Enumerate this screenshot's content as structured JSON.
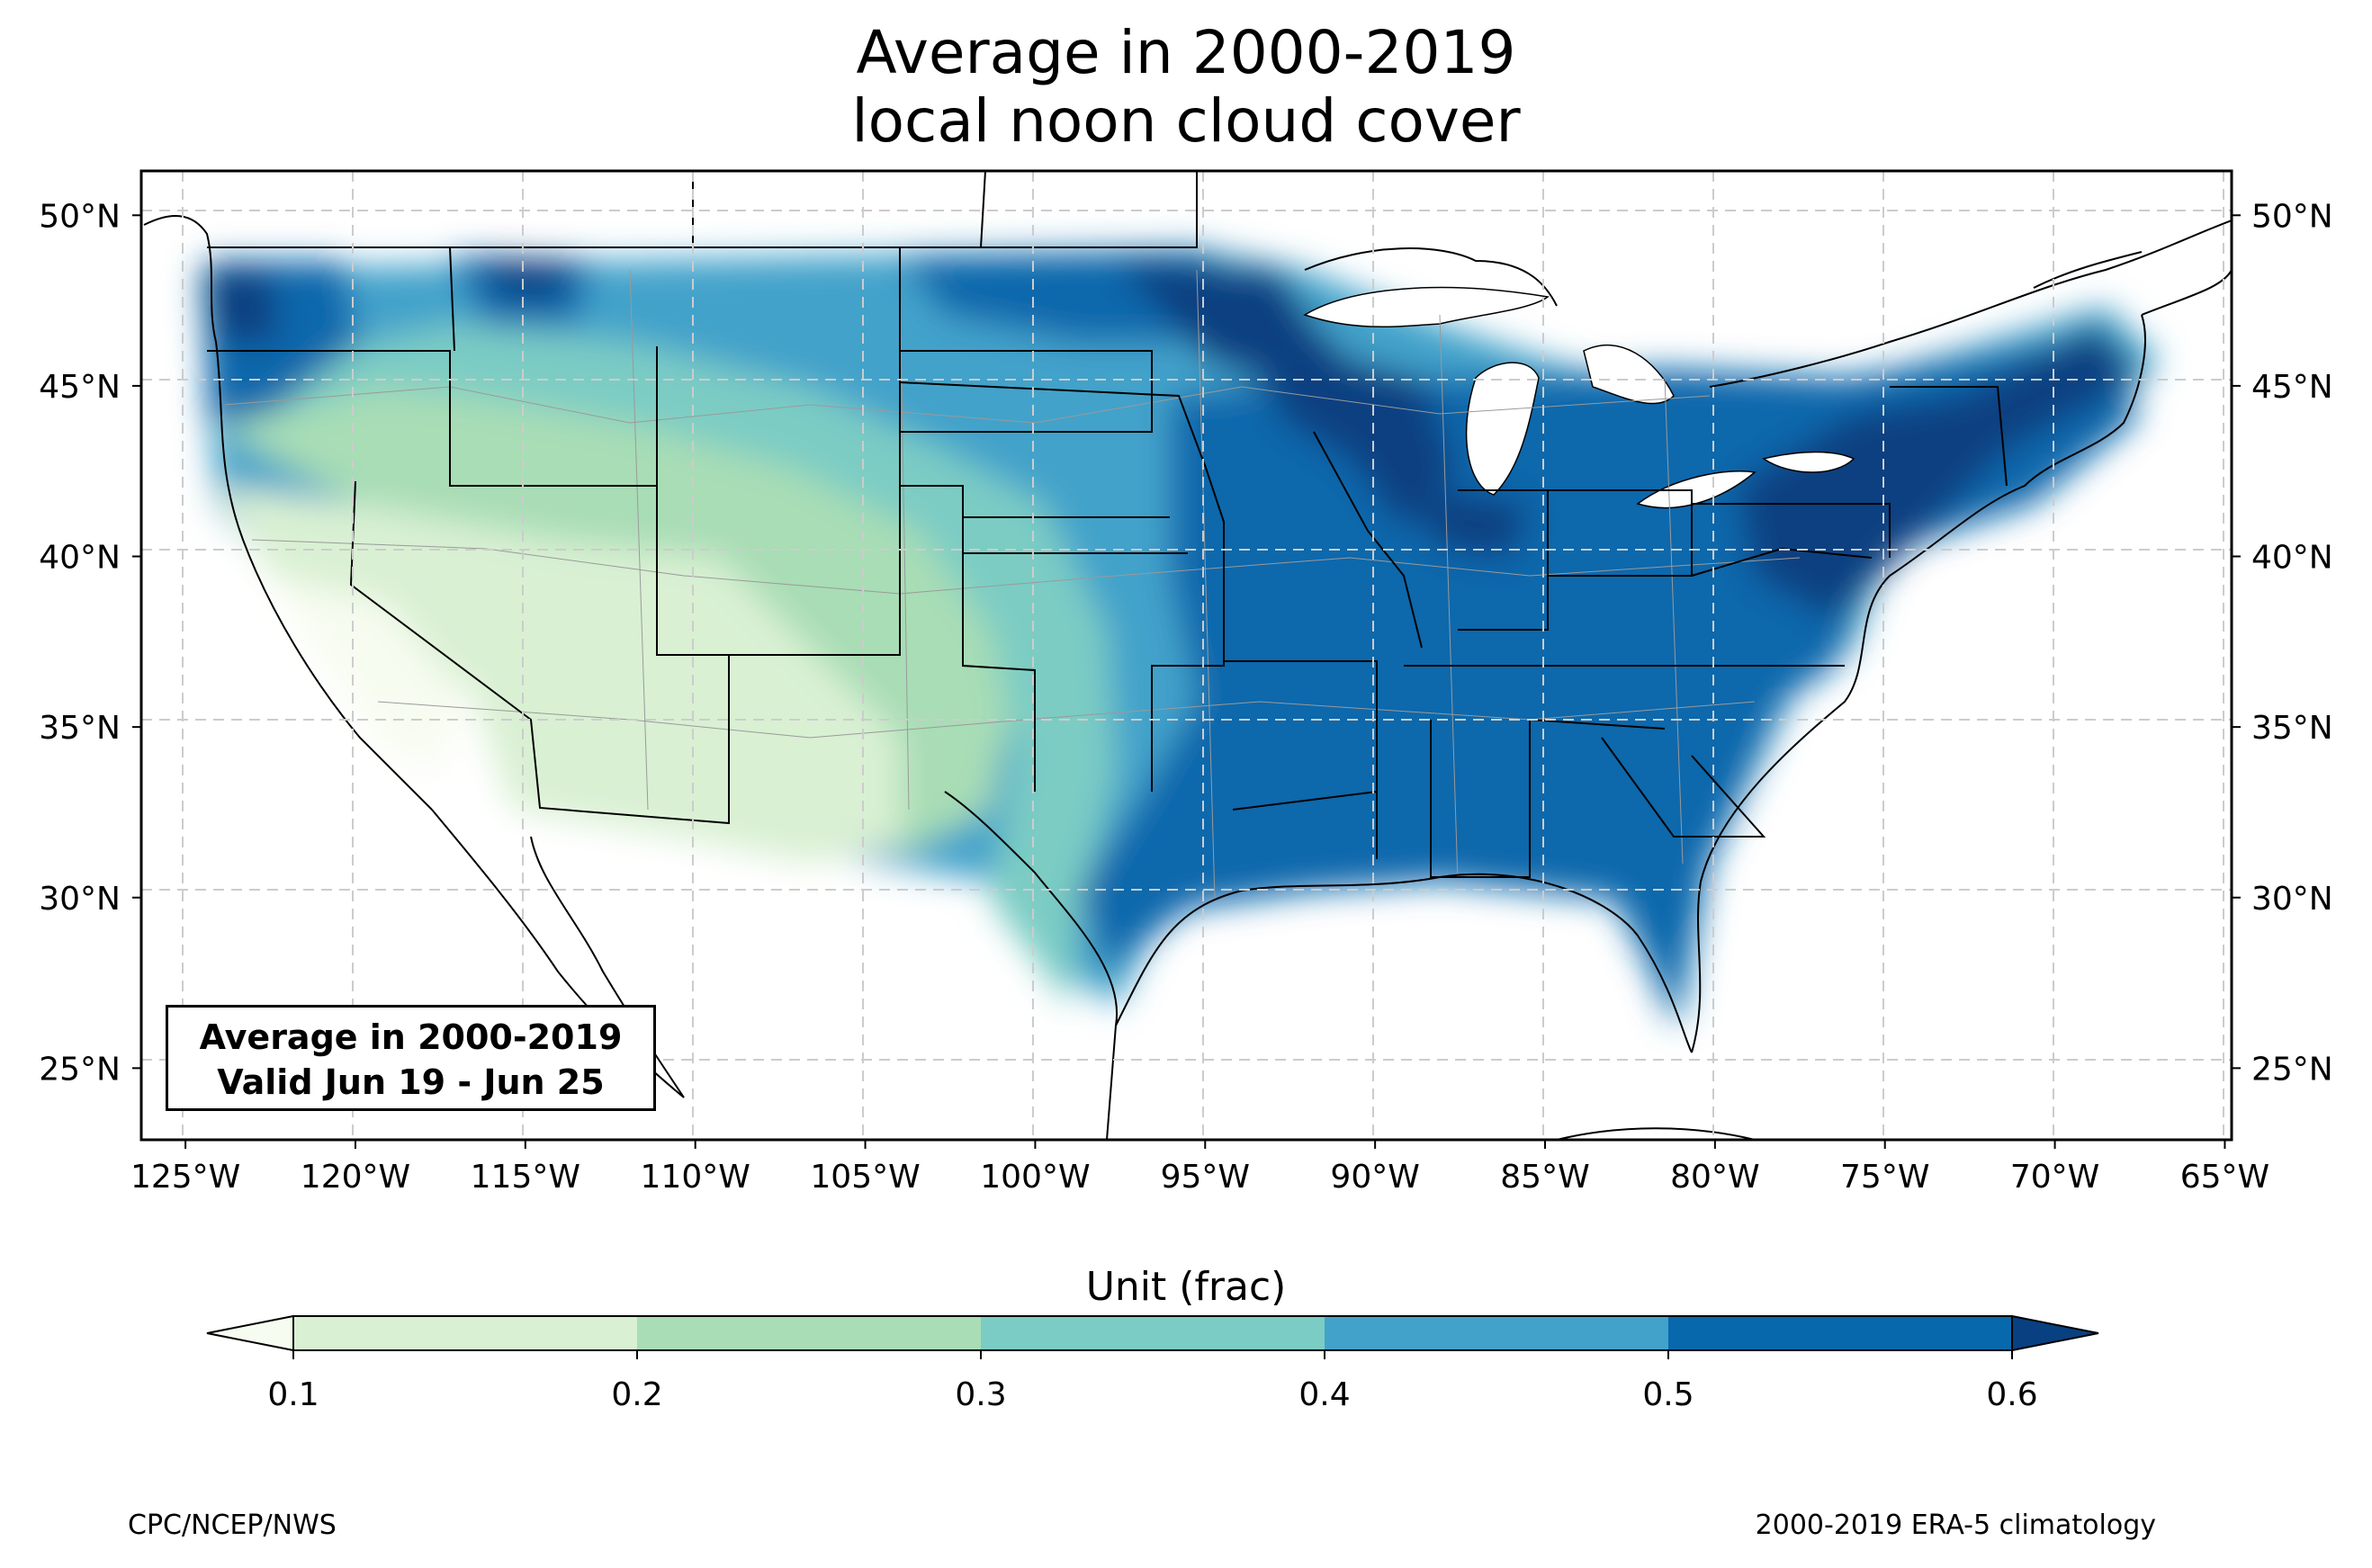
{
  "title": {
    "line1": "Average in 2000-2019",
    "line2": "local noon cloud cover"
  },
  "map": {
    "lon_range": [
      -126.3,
      -64.8
    ],
    "lat_range": [
      22.9,
      51.3
    ],
    "lon_ticks": [
      "125°W",
      "120°W",
      "115°W",
      "110°W",
      "105°W",
      "100°W",
      "95°W",
      "90°W",
      "85°W",
      "80°W",
      "75°W",
      "70°W",
      "65°W"
    ],
    "lat_ticks_left": [
      "50°N",
      "45°N",
      "40°N",
      "35°N",
      "30°N",
      "25°N"
    ],
    "lat_ticks_right": [
      "50°N",
      "45°N",
      "40°N",
      "35°N",
      "30°N",
      "25°N"
    ],
    "gridlines": true,
    "field": "cloud cover (fraction)",
    "pattern": "lowest values in the Southwest and California; highest values in the Northeast, Great Lakes and Pacific Northwest coast"
  },
  "infobox": {
    "line1": "Average in 2000-2019",
    "line2": "Valid Jun 19 - Jun 25"
  },
  "colorbar": {
    "label": "Unit (frac)",
    "ticks": [
      "0.1",
      "0.2",
      "0.3",
      "0.4",
      "0.5",
      "0.6"
    ],
    "levels": [
      0.1,
      0.2,
      0.3,
      0.4,
      0.5,
      0.6
    ],
    "colors": [
      "#f7fcf0",
      "#d9f0d3",
      "#a8ddb5",
      "#7bccc4",
      "#43a2ca",
      "#0868ac",
      "#084081"
    ],
    "extend": "both"
  },
  "footer": {
    "left": "CPC/NCEP/NWS",
    "right": "2000-2019 ERA-5 climatology"
  }
}
